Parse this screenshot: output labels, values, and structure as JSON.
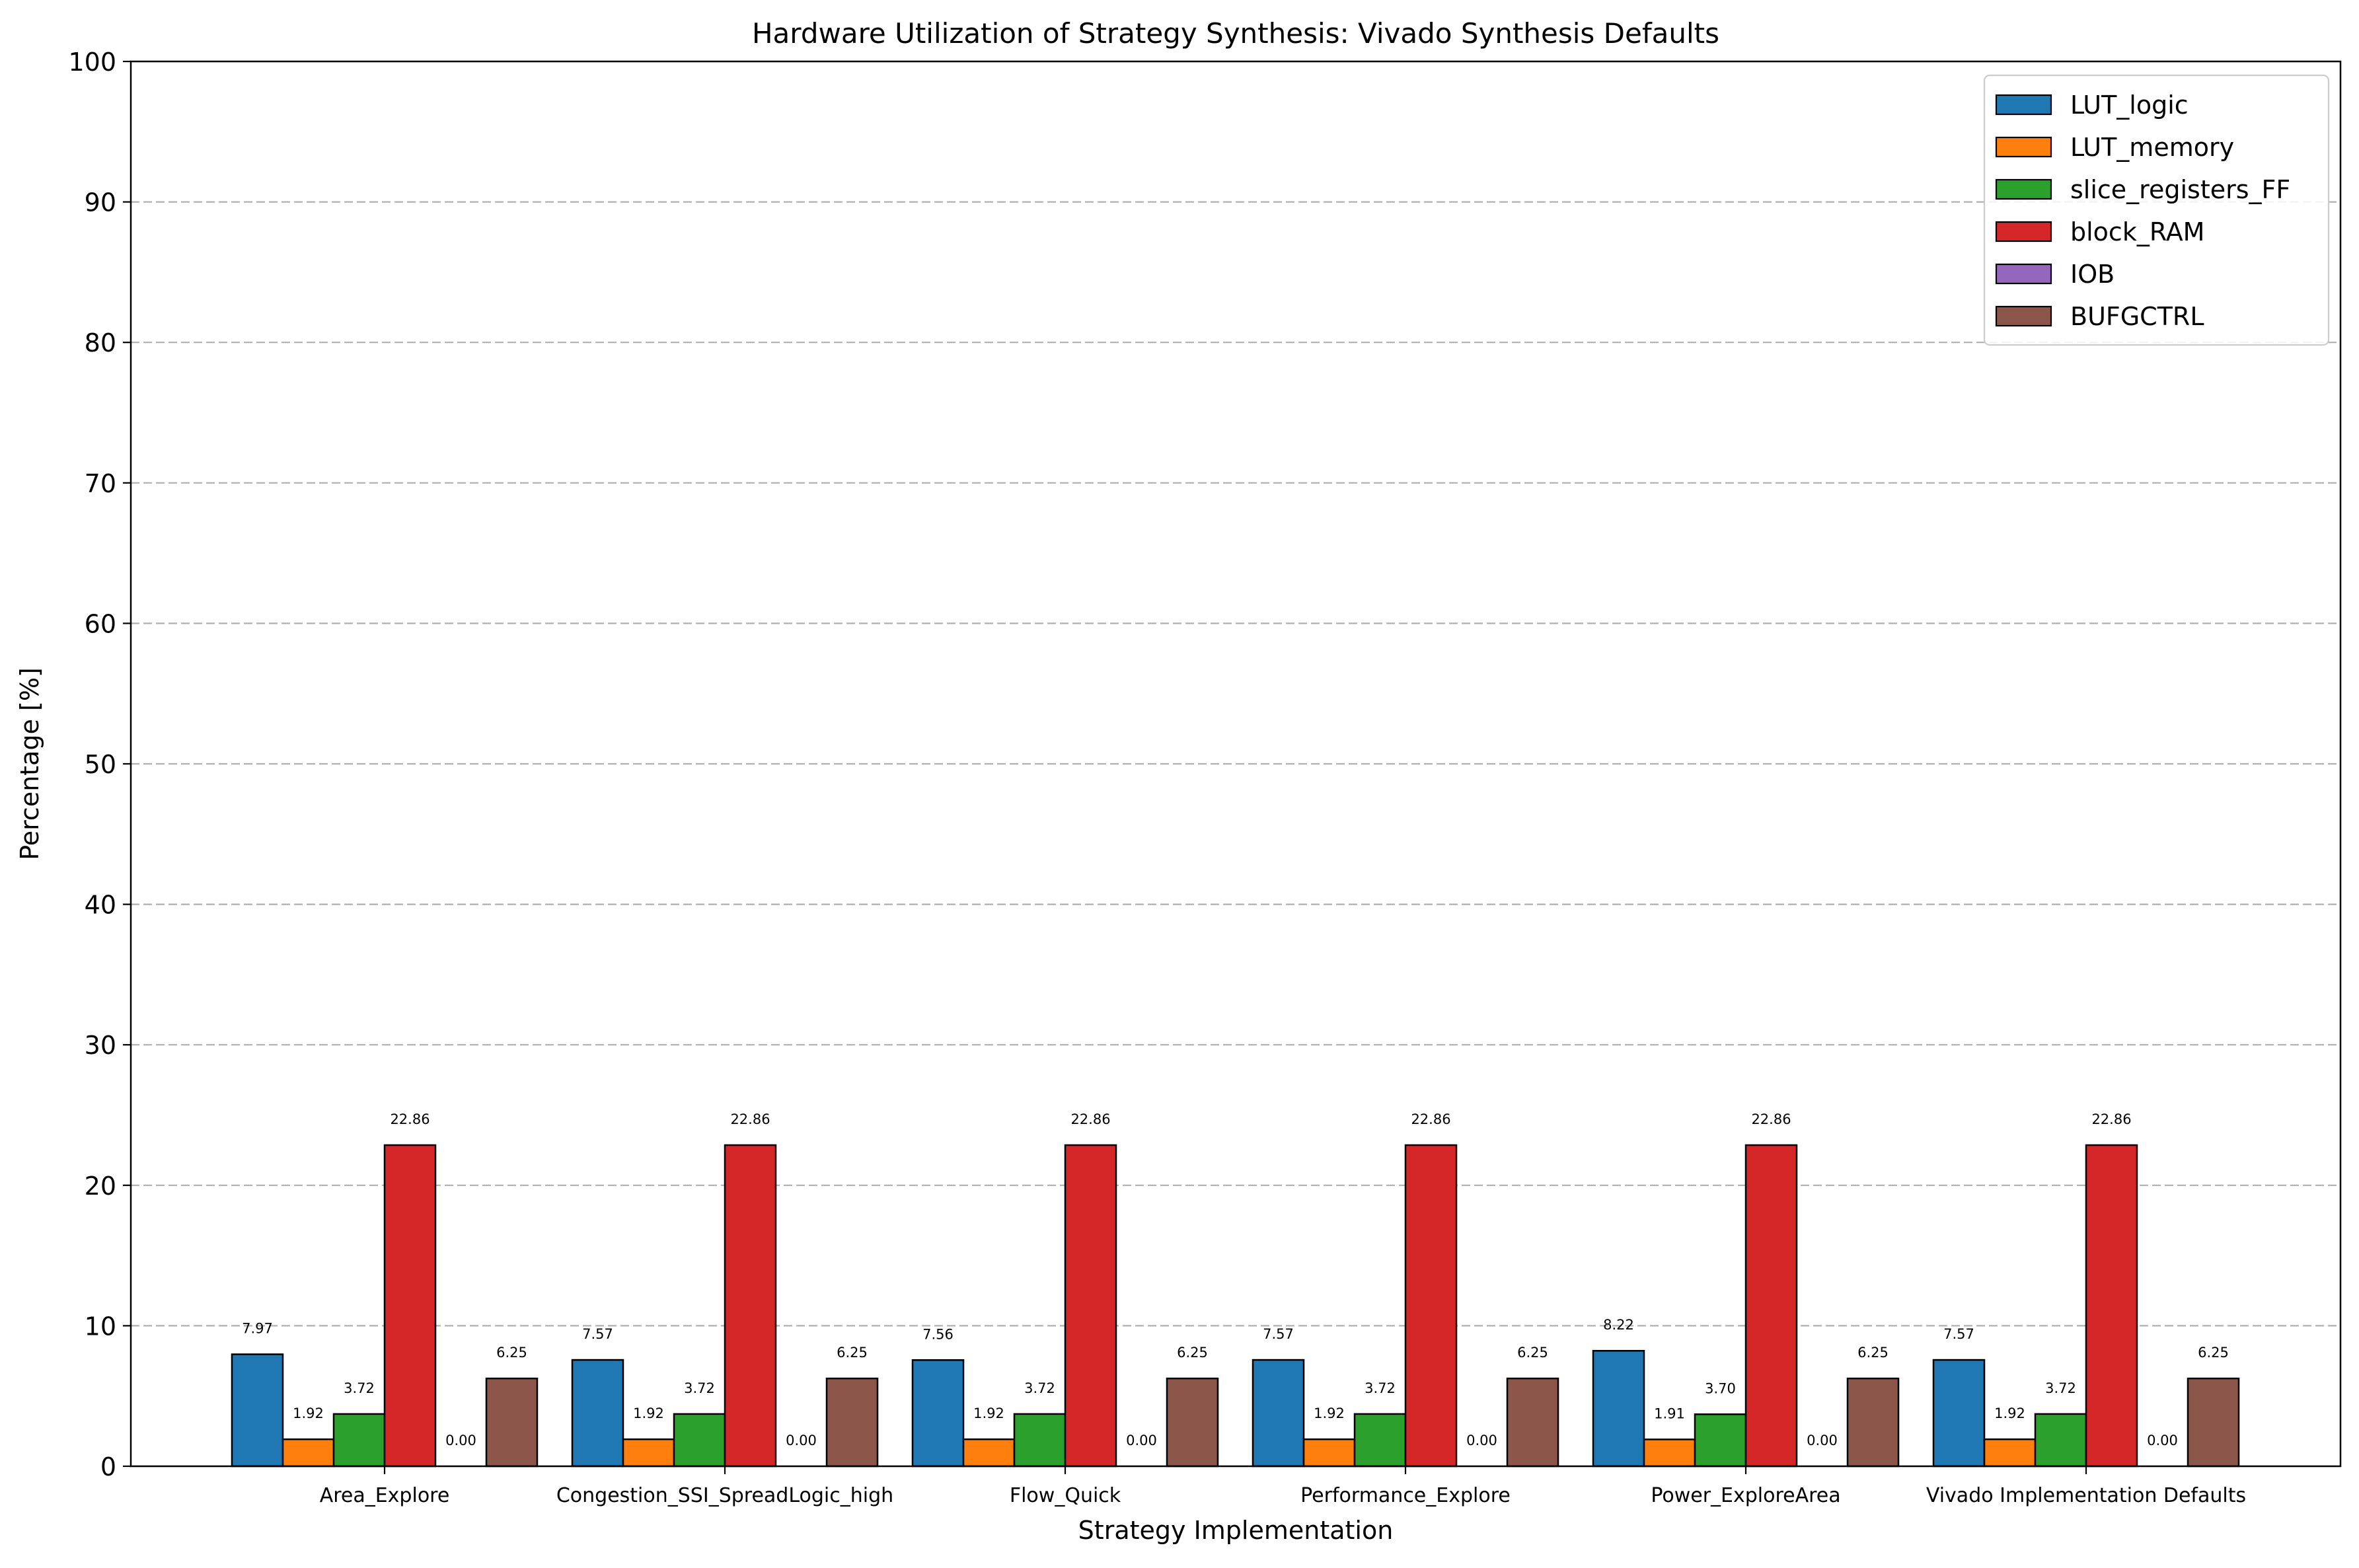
{
  "chart_data": {
    "type": "bar",
    "title": "Hardware Utilization of Strategy Synthesis: Vivado Synthesis Defaults",
    "xlabel": "Strategy Implementation",
    "ylabel": "Percentage [%]",
    "ylim": [
      0,
      100
    ],
    "yticks": [
      0,
      10,
      20,
      30,
      40,
      50,
      60,
      70,
      80,
      90,
      100
    ],
    "grid": "y-dashed",
    "legend_position": "top-right",
    "categories": [
      "Area_Explore",
      "Congestion_SSI_SpreadLogic_high",
      "Flow_Quick",
      "Performance_Explore",
      "Power_ExploreArea",
      "Vivado Implementation Defaults"
    ],
    "series": [
      {
        "name": "LUT_logic",
        "color": "#1f77b4",
        "values": [
          7.97,
          7.57,
          7.56,
          7.57,
          8.22,
          7.57
        ],
        "labels": [
          "7.97",
          "7.57",
          "7.56",
          "7.57",
          "8.22",
          "7.57"
        ]
      },
      {
        "name": "LUT_memory",
        "color": "#ff7f0e",
        "values": [
          1.92,
          1.92,
          1.92,
          1.92,
          1.91,
          1.92
        ],
        "labels": [
          "1.92",
          "1.92",
          "1.92",
          "1.92",
          "1.91",
          "1.92"
        ]
      },
      {
        "name": "slice_registers_FF",
        "color": "#2ca02c",
        "values": [
          3.72,
          3.72,
          3.72,
          3.72,
          3.7,
          3.72
        ],
        "labels": [
          "3.72",
          "3.72",
          "3.72",
          "3.72",
          "3.70",
          "3.72"
        ]
      },
      {
        "name": "block_RAM",
        "color": "#d62728",
        "values": [
          22.86,
          22.86,
          22.86,
          22.86,
          22.86,
          22.86
        ],
        "labels": [
          "22.86",
          "22.86",
          "22.86",
          "22.86",
          "22.86",
          "22.86"
        ]
      },
      {
        "name": "IOB",
        "color": "#9467bd",
        "values": [
          0.0,
          0.0,
          0.0,
          0.0,
          0.0,
          0.0
        ],
        "labels": [
          "0.00",
          "0.00",
          "0.00",
          "0.00",
          "0.00",
          "0.00"
        ]
      },
      {
        "name": "BUFGCTRL",
        "color": "#8c564b",
        "values": [
          6.25,
          6.25,
          6.25,
          6.25,
          6.25,
          6.25
        ],
        "labels": [
          "6.25",
          "6.25",
          "6.25",
          "6.25",
          "6.25",
          "6.25"
        ]
      }
    ]
  }
}
